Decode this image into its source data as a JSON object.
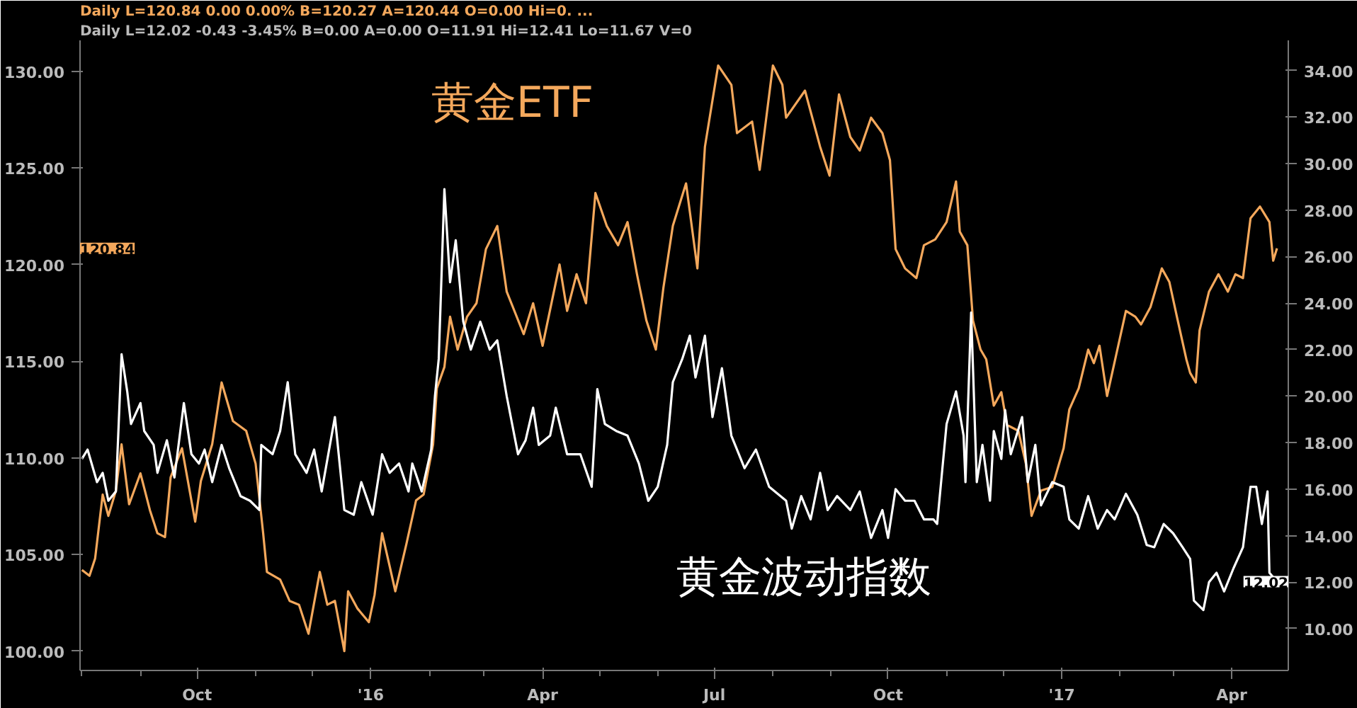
{
  "chart_data": {
    "type": "line",
    "xlim": [
      "2015-07-31",
      "2017-05-01"
    ],
    "xticks": [
      {
        "value": "2015-08-01",
        "label": null
      },
      {
        "value": "2015-09-01",
        "label": null
      },
      {
        "value": "2015-10-01",
        "label": "Oct"
      },
      {
        "value": "2015-11-01",
        "label": null
      },
      {
        "value": "2015-12-01",
        "label": null
      },
      {
        "value": "2016-01-01",
        "label": "'16"
      },
      {
        "value": "2016-02-01",
        "label": null
      },
      {
        "value": "2016-03-01",
        "label": null
      },
      {
        "value": "2016-04-01",
        "label": "Apr"
      },
      {
        "value": "2016-05-01",
        "label": null
      },
      {
        "value": "2016-06-01",
        "label": null
      },
      {
        "value": "2016-07-01",
        "label": "Jul"
      },
      {
        "value": "2016-08-01",
        "label": null
      },
      {
        "value": "2016-09-01",
        "label": null
      },
      {
        "value": "2016-10-01",
        "label": "Oct"
      },
      {
        "value": "2016-11-01",
        "label": null
      },
      {
        "value": "2016-12-01",
        "label": null
      },
      {
        "value": "2017-01-01",
        "label": "'17"
      },
      {
        "value": "2017-02-01",
        "label": null
      },
      {
        "value": "2017-03-01",
        "label": null
      },
      {
        "value": "2017-04-01",
        "label": "Apr"
      }
    ],
    "ylim": [
      99.0,
      131.6
    ],
    "yticks": [
      {
        "value": 100,
        "label": "100.00"
      },
      {
        "value": 105,
        "label": "105.00"
      },
      {
        "value": 110,
        "label": "110.00"
      },
      {
        "value": 115,
        "label": "115.00"
      },
      {
        "value": 120,
        "label": "120.00"
      },
      {
        "value": 125,
        "label": "125.00"
      },
      {
        "value": 130,
        "label": "130.00"
      }
    ],
    "y2lim": [
      8.2,
      35.3
    ],
    "y2ticks": [
      {
        "value": 10,
        "label": "10.00"
      },
      {
        "value": 12,
        "label": "12.00"
      },
      {
        "value": 14,
        "label": "14.00"
      },
      {
        "value": 16,
        "label": "16.00"
      },
      {
        "value": 18,
        "label": "18.00"
      },
      {
        "value": 20,
        "label": "20.00"
      },
      {
        "value": 22,
        "label": "22.00"
      },
      {
        "value": 24,
        "label": "24.00"
      },
      {
        "value": 26,
        "label": "26.00"
      },
      {
        "value": 28,
        "label": "28.00"
      },
      {
        "value": 30,
        "label": "30.00"
      },
      {
        "value": 32,
        "label": "32.00"
      },
      {
        "value": 34,
        "label": "34.00"
      }
    ],
    "grid": false,
    "legend": false,
    "annotations": [
      "Daily  L=12.02 -0.43 -3.45% B=0.00 A=0.00 O=11.91 Hi=12.41 Lo=11.67 V=0",
      "Daily  L=120.84 0.00 0.00% B=120.27 A=120.44 O=0.00 Hi=0. ...",
      "120.84",
      "12.02"
    ],
    "series": [
      {
        "name": "黄金ETF",
        "color": "#f4a85c",
        "x": [
          "2015-08-01",
          "2015-08-05",
          "2015-08-08",
          "2015-08-12",
          "2015-08-15",
          "2015-08-19",
          "2015-08-22",
          "2015-08-26",
          "2015-09-01",
          "2015-09-06",
          "2015-09-10",
          "2015-09-14",
          "2015-09-17",
          "2015-09-23",
          "2015-09-30",
          "2015-10-03",
          "2015-10-09",
          "2015-10-14",
          "2015-10-20",
          "2015-10-27",
          "2015-11-01",
          "2015-11-05",
          "2015-11-07",
          "2015-11-14",
          "2015-11-19",
          "2015-11-24",
          "2015-11-29",
          "2015-12-05",
          "2015-12-09",
          "2015-12-13",
          "2015-12-18",
          "2015-12-20",
          "2015-12-25",
          "2015-12-31",
          "2016-01-03",
          "2016-01-07",
          "2016-01-11",
          "2016-01-14",
          "2016-01-20",
          "2016-01-25",
          "2016-01-29",
          "2016-02-03",
          "2016-02-05",
          "2016-02-09",
          "2016-02-12",
          "2016-02-16",
          "2016-02-21",
          "2016-02-26",
          "2016-03-02",
          "2016-03-08",
          "2016-03-13",
          "2016-03-22",
          "2016-03-27",
          "2016-04-01",
          "2016-04-10",
          "2016-04-14",
          "2016-04-19",
          "2016-04-24",
          "2016-04-29",
          "2016-05-05",
          "2016-05-11",
          "2016-05-16",
          "2016-05-21",
          "2016-05-26",
          "2016-05-31",
          "2016-06-04",
          "2016-06-09",
          "2016-06-16",
          "2016-06-22",
          "2016-06-26",
          "2016-07-03",
          "2016-07-10",
          "2016-07-13",
          "2016-07-21",
          "2016-07-25",
          "2016-08-01",
          "2016-08-06",
          "2016-08-08",
          "2016-08-18",
          "2016-08-26",
          "2016-08-31",
          "2016-09-05",
          "2016-09-11",
          "2016-09-16",
          "2016-09-22",
          "2016-09-28",
          "2016-10-02",
          "2016-10-05",
          "2016-10-10",
          "2016-10-16",
          "2016-10-20",
          "2016-10-26",
          "2016-11-01",
          "2016-11-06",
          "2016-11-08",
          "2016-11-12",
          "2016-11-15",
          "2016-11-19",
          "2016-11-22",
          "2016-11-26",
          "2016-11-30",
          "2016-12-03",
          "2016-12-09",
          "2016-12-13",
          "2016-12-16",
          "2016-12-21",
          "2016-12-27",
          "2017-01-02",
          "2017-01-05",
          "2017-01-10",
          "2017-01-15",
          "2017-01-18",
          "2017-01-21",
          "2017-01-25",
          "2017-01-30",
          "2017-02-04",
          "2017-02-09",
          "2017-02-12",
          "2017-02-17",
          "2017-02-23",
          "2017-02-27",
          "2017-03-03",
          "2017-03-08",
          "2017-03-10",
          "2017-03-13",
          "2017-03-15",
          "2017-03-20",
          "2017-03-25",
          "2017-03-30",
          "2017-04-03",
          "2017-04-07",
          "2017-04-11",
          "2017-04-16",
          "2017-04-21",
          "2017-04-23",
          "2017-04-25"
        ],
        "values": [
          104.2,
          103.9,
          104.8,
          108.1,
          107.0,
          108.3,
          110.7,
          107.6,
          109.2,
          107.3,
          106.1,
          105.9,
          109.0,
          110.5,
          106.7,
          108.8,
          110.7,
          113.9,
          111.9,
          111.4,
          109.7,
          106.1,
          104.1,
          103.7,
          102.6,
          102.4,
          100.9,
          104.1,
          102.4,
          102.6,
          100.0,
          103.1,
          102.2,
          101.5,
          102.9,
          106.1,
          104.4,
          103.1,
          105.6,
          107.8,
          108.1,
          110.7,
          113.6,
          114.7,
          117.3,
          115.6,
          117.3,
          118.0,
          120.8,
          122.0,
          118.6,
          116.4,
          118.0,
          115.8,
          120.0,
          117.6,
          119.5,
          118.0,
          123.7,
          122.0,
          121.0,
          122.2,
          119.5,
          117.1,
          115.6,
          118.8,
          122.0,
          124.2,
          119.8,
          126.1,
          130.3,
          129.3,
          126.8,
          127.4,
          124.9,
          130.3,
          129.3,
          127.6,
          129.0,
          126.1,
          124.6,
          128.8,
          126.6,
          125.9,
          127.6,
          126.8,
          125.4,
          120.8,
          119.8,
          119.3,
          121.0,
          121.3,
          122.2,
          124.3,
          121.7,
          121.0,
          117.1,
          115.6,
          115.1,
          112.7,
          113.4,
          111.7,
          111.4,
          109.7,
          107.0,
          108.3,
          108.5,
          110.5,
          112.5,
          113.6,
          115.6,
          114.9,
          115.8,
          113.2,
          115.4,
          117.6,
          117.3,
          116.9,
          117.8,
          119.8,
          119.1,
          117.3,
          115.1,
          114.4,
          113.9,
          116.6,
          118.6,
          119.5,
          118.6,
          119.5,
          119.3,
          122.4,
          123.0,
          122.2,
          120.2,
          120.84
        ]
      },
      {
        "name": "黄金波动指数",
        "color": "#ffffff",
        "axis": "y2",
        "x": [
          "2015-08-01",
          "2015-08-04",
          "2015-08-09",
          "2015-08-12",
          "2015-08-15",
          "2015-08-19",
          "2015-08-22",
          "2015-08-25",
          "2015-08-27",
          "2015-09-01",
          "2015-09-03",
          "2015-09-08",
          "2015-09-10",
          "2015-09-15",
          "2015-09-19",
          "2015-09-24",
          "2015-09-28",
          "2015-10-02",
          "2015-10-05",
          "2015-10-09",
          "2015-10-14",
          "2015-10-18",
          "2015-10-24",
          "2015-10-29",
          "2015-11-03",
          "2015-11-04",
          "2015-11-10",
          "2015-11-14",
          "2015-11-18",
          "2015-11-22",
          "2015-11-28",
          "2015-12-02",
          "2015-12-06",
          "2015-12-13",
          "2015-12-18",
          "2015-12-23",
          "2015-12-27",
          "2016-01-02",
          "2016-01-07",
          "2016-01-11",
          "2016-01-16",
          "2016-01-21",
          "2016-01-23",
          "2016-01-28",
          "2016-02-02",
          "2016-02-04",
          "2016-02-06",
          "2016-02-09",
          "2016-02-12",
          "2016-02-15",
          "2016-02-19",
          "2016-02-23",
          "2016-02-28",
          "2016-03-04",
          "2016-03-08",
          "2016-03-13",
          "2016-03-19",
          "2016-03-23",
          "2016-03-27",
          "2016-03-30",
          "2016-04-05",
          "2016-04-08",
          "2016-04-14",
          "2016-04-21",
          "2016-04-27",
          "2016-04-30",
          "2016-05-04",
          "2016-05-10",
          "2016-05-16",
          "2016-05-22",
          "2016-05-27",
          "2016-06-01",
          "2016-06-06",
          "2016-06-09",
          "2016-06-14",
          "2016-06-18",
          "2016-06-21",
          "2016-06-26",
          "2016-06-30",
          "2016-07-05",
          "2016-07-10",
          "2016-07-17",
          "2016-07-23",
          "2016-07-30",
          "2016-08-08",
          "2016-08-11",
          "2016-08-16",
          "2016-08-21",
          "2016-08-26",
          "2016-08-30",
          "2016-09-04",
          "2016-09-11",
          "2016-09-16",
          "2016-09-22",
          "2016-09-28",
          "2016-10-01",
          "2016-10-05",
          "2016-10-10",
          "2016-10-15",
          "2016-10-20",
          "2016-10-25",
          "2016-10-27",
          "2016-11-01",
          "2016-11-06",
          "2016-11-10",
          "2016-11-11",
          "2016-11-14",
          "2016-11-17",
          "2016-11-20",
          "2016-11-24",
          "2016-11-26",
          "2016-11-30",
          "2016-12-02",
          "2016-12-05",
          "2016-12-11",
          "2016-12-14",
          "2016-12-18",
          "2016-12-21",
          "2016-12-27",
          "2017-01-02",
          "2017-01-05",
          "2017-01-10",
          "2017-01-15",
          "2017-01-20",
          "2017-01-25",
          "2017-01-29",
          "2017-02-04",
          "2017-02-10",
          "2017-02-15",
          "2017-02-19",
          "2017-02-24",
          "2017-03-01",
          "2017-03-06",
          "2017-03-10",
          "2017-03-12",
          "2017-03-17",
          "2017-03-20",
          "2017-03-24",
          "2017-03-28",
          "2017-04-02",
          "2017-04-07",
          "2017-04-11",
          "2017-04-14",
          "2017-04-17",
          "2017-04-20",
          "2017-04-21",
          "2017-04-25"
        ],
        "values": [
          17.3,
          17.7,
          16.3,
          16.7,
          15.5,
          15.9,
          21.8,
          20.2,
          18.8,
          19.7,
          18.5,
          17.9,
          16.7,
          18.1,
          16.5,
          19.7,
          17.5,
          17.1,
          17.7,
          16.3,
          17.9,
          16.9,
          15.7,
          15.5,
          15.1,
          17.9,
          17.5,
          18.5,
          20.6,
          17.5,
          16.7,
          17.7,
          15.9,
          19.1,
          15.1,
          14.9,
          16.3,
          14.9,
          17.5,
          16.7,
          17.1,
          15.9,
          17.1,
          15.9,
          17.7,
          20.0,
          21.6,
          28.9,
          24.9,
          26.7,
          23.2,
          22.0,
          23.2,
          22.0,
          22.4,
          20.0,
          17.5,
          18.1,
          19.5,
          17.9,
          18.3,
          19.5,
          17.5,
          17.5,
          16.1,
          20.3,
          18.8,
          18.5,
          18.3,
          17.1,
          15.5,
          16.1,
          17.9,
          20.6,
          21.6,
          22.6,
          20.8,
          22.6,
          19.1,
          21.2,
          18.3,
          16.9,
          17.7,
          16.1,
          15.5,
          14.3,
          15.7,
          14.7,
          16.7,
          15.1,
          15.7,
          15.1,
          15.9,
          13.9,
          15.1,
          13.9,
          16.0,
          15.5,
          15.5,
          14.7,
          14.7,
          14.5,
          18.8,
          20.2,
          18.3,
          16.3,
          23.6,
          16.3,
          17.9,
          15.5,
          18.5,
          17.3,
          19.4,
          17.5,
          19.1,
          16.3,
          17.9,
          15.3,
          16.3,
          16.1,
          14.7,
          14.3,
          15.7,
          14.3,
          15.1,
          14.7,
          15.8,
          14.9,
          13.6,
          13.5,
          14.5,
          14.1,
          13.5,
          13.0,
          11.2,
          10.8,
          12.0,
          12.4,
          11.6,
          12.6,
          13.5,
          16.1,
          16.1,
          14.5,
          15.9,
          12.4,
          12.02
        ]
      }
    ]
  }
}
